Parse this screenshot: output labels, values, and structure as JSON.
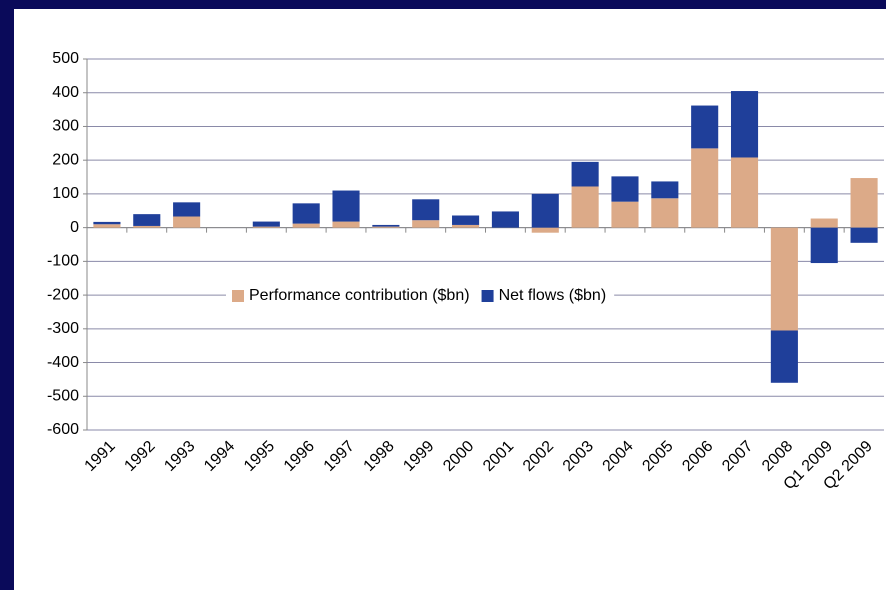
{
  "chart_data": {
    "type": "stacked_bar",
    "categories": [
      "1991",
      "1992",
      "1993",
      "1994",
      "1995",
      "1996",
      "1997",
      "1998",
      "1999",
      "2000",
      "2001",
      "2002",
      "2003",
      "2004",
      "2005",
      "2006",
      "2007",
      "2008",
      "Q1 2009",
      "Q2 2009"
    ],
    "series": [
      {
        "name": "Performance contribution ($bn)",
        "color": "#dcaa88",
        "values": [
          10,
          5,
          33,
          0,
          3,
          12,
          18,
          3,
          22,
          8,
          0,
          -15,
          122,
          77,
          87,
          235,
          208,
          -305,
          27,
          147
        ]
      },
      {
        "name": "Net flows ($bn)",
        "color": "#1f3f9a",
        "values": [
          7,
          35,
          42,
          0,
          15,
          60,
          92,
          5,
          62,
          28,
          48,
          100,
          73,
          75,
          50,
          127,
          197,
          -155,
          -105,
          -45
        ]
      }
    ],
    "ylim": [
      -600,
      500
    ],
    "yticks": [
      -600,
      -500,
      -400,
      -300,
      -200,
      -100,
      0,
      100,
      200,
      300,
      400,
      500
    ],
    "grid": true,
    "legend": "center"
  }
}
